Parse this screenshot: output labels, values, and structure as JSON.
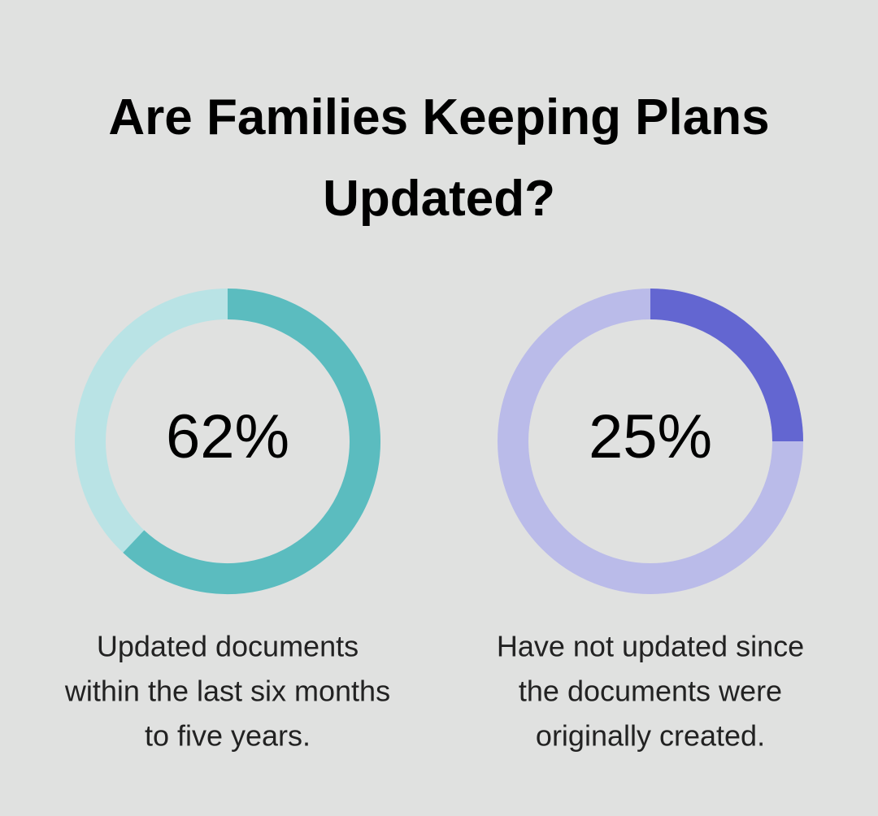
{
  "title": "Are Families Keeping Plans Updated?",
  "chart_data": [
    {
      "type": "donut",
      "values": [
        62
      ],
      "value_labels": [
        "62%"
      ],
      "color": "#5bbcbf",
      "track_color": "#b9e3e5",
      "caption": [
        "Updated documents",
        "within the last six months",
        "to five years."
      ]
    },
    {
      "type": "donut",
      "values": [
        25
      ],
      "value_labels": [
        "25%"
      ],
      "color": "#6366d1",
      "track_color": "#babbe9",
      "caption": [
        "Have not updated since",
        "the documents were",
        "originally created."
      ]
    }
  ]
}
